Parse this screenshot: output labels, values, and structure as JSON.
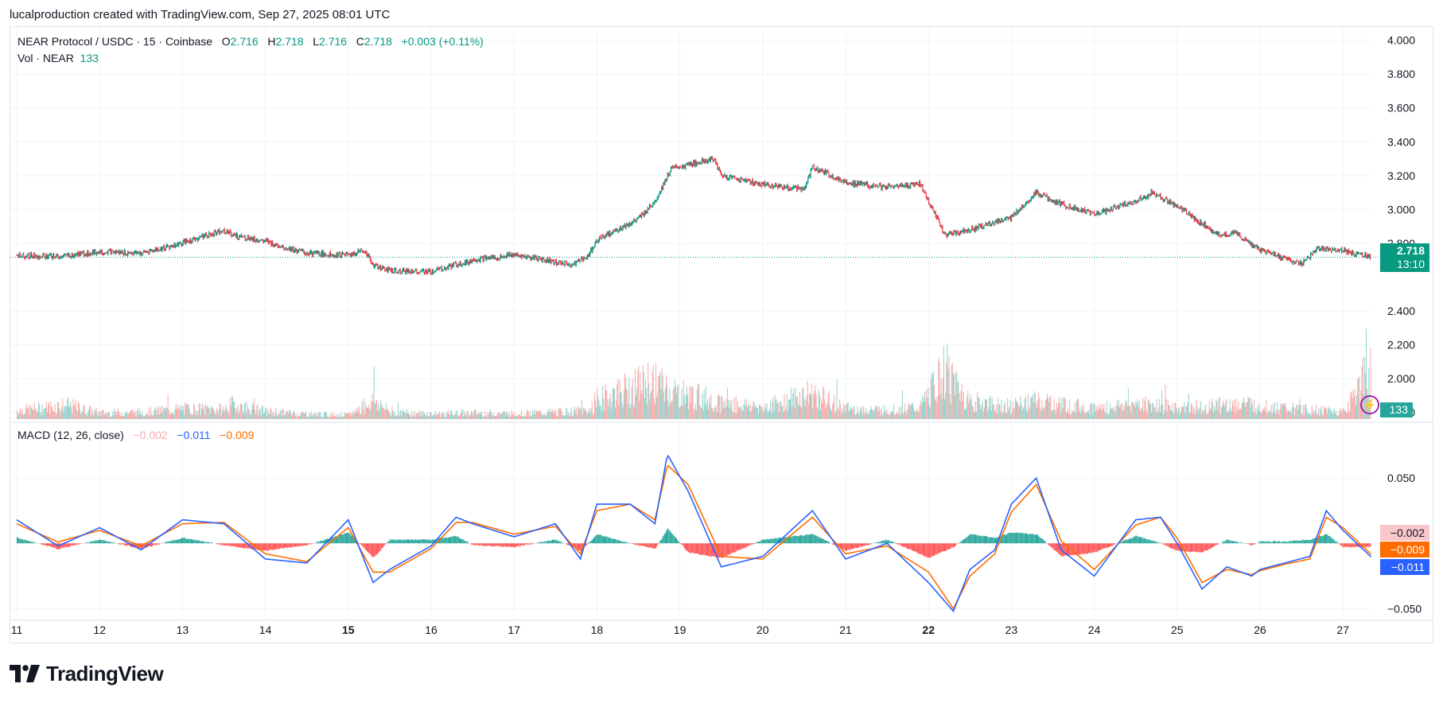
{
  "header": {
    "attribution": "lucalproduction created with TradingView.com, Sep 27, 2025 08:01 UTC"
  },
  "legend": {
    "symbol": "NEAR Protocol / USDC · 15 · Coinbase",
    "o_label": "O",
    "o": "2.716",
    "h_label": "H",
    "h": "2.718",
    "l_label": "L",
    "l": "2.716",
    "c_label": "C",
    "c": "2.718",
    "change": "+0.003 (+0.11%)",
    "vol_label": "Vol · NEAR",
    "vol": "133",
    "macd_label": "MACD (12, 26, close)",
    "macd_hist": "−0.002",
    "macd_line": "−0.011",
    "macd_signal": "−0.009"
  },
  "price_tag": {
    "value": "2.718",
    "countdown": "13:10"
  },
  "volume_tag": "133",
  "macd_tags": {
    "hist": "−0.002",
    "signal": "−0.009",
    "macd": "−0.011"
  },
  "brand": {
    "name": "TradingView"
  },
  "colors": {
    "up": "#089981",
    "down": "#f23645",
    "macd": "#2962ff",
    "signal": "#ff6d00",
    "grid": "#f0f3fa"
  },
  "chart_data": [
    {
      "type": "line",
      "title": "NEAR Protocol / USDC · 15 · Coinbase",
      "x_tick_labels": [
        "11",
        "12",
        "13",
        "14",
        "15",
        "16",
        "17",
        "18",
        "19",
        "20",
        "21",
        "22",
        "23",
        "24",
        "25",
        "26",
        "27"
      ],
      "y_tick_labels": [
        "4.000",
        "3.800",
        "3.600",
        "3.400",
        "3.200",
        "3.000",
        "2.800",
        "2.400",
        "2.200",
        "2.000",
        "1.800"
      ],
      "ylim": [
        1.7,
        4.05
      ],
      "last_price": 2.718,
      "series": [
        {
          "name": "",
          "x": [
            11,
            11.5,
            12,
            12.5,
            13,
            13.5,
            13.6,
            14,
            14.5,
            15,
            15.2,
            15.3,
            15.5,
            16,
            16.5,
            17,
            17.5,
            17.7,
            17.9,
            18,
            18.5,
            18.7,
            18.9,
            19,
            19.4,
            19.5,
            20,
            20.5,
            20.6,
            21,
            21.5,
            21.9,
            22,
            22.2,
            22.5,
            23,
            23.3,
            23.5,
            24,
            24.5,
            24.7,
            25,
            25.5,
            25.7,
            26,
            26.5,
            26.7,
            27,
            27.3
          ],
          "values": [
            2.73,
            2.72,
            2.75,
            2.74,
            2.8,
            2.88,
            2.85,
            2.81,
            2.74,
            2.73,
            2.76,
            2.67,
            2.64,
            2.63,
            2.7,
            2.73,
            2.69,
            2.67,
            2.73,
            2.82,
            2.94,
            3.05,
            3.24,
            3.25,
            3.3,
            3.2,
            3.15,
            3.12,
            3.25,
            3.16,
            3.13,
            3.15,
            3.05,
            2.85,
            2.88,
            2.95,
            3.1,
            3.05,
            2.97,
            3.05,
            3.1,
            3.02,
            2.85,
            2.86,
            2.76,
            2.68,
            2.77,
            2.76,
            2.72
          ]
        }
      ],
      "volume": {
        "name": "Vol · NEAR",
        "x": [
          11,
          11.6,
          12,
          12.5,
          13,
          13.5,
          13.6,
          14,
          14.5,
          15,
          15.3,
          15.5,
          16,
          16.5,
          17,
          17.5,
          17.9,
          18.1,
          18.7,
          18.8,
          18.9,
          19,
          19.4,
          19.5,
          20,
          20.6,
          21,
          21.5,
          21.9,
          22.2,
          22.5,
          23,
          23.3,
          24,
          24.6,
          25,
          25.4,
          25.8,
          26,
          26.5,
          27,
          27.3
        ],
        "values": [
          25,
          40,
          18,
          20,
          30,
          28,
          42,
          22,
          15,
          12,
          55,
          20,
          15,
          18,
          16,
          20,
          25,
          65,
          110,
          90,
          80,
          70,
          58,
          45,
          35,
          72,
          30,
          25,
          35,
          140,
          50,
          35,
          52,
          30,
          45,
          32,
          38,
          45,
          35,
          28,
          22,
          133
        ]
      }
    },
    {
      "type": "line",
      "title": "MACD (12, 26, close)",
      "y_tick_labels": [
        "0.050",
        "−0.050"
      ],
      "ylim": [
        -0.065,
        0.075
      ],
      "series": [
        {
          "name": "MACD",
          "x": [
            11,
            11.5,
            12,
            12.5,
            13,
            13.5,
            14,
            14.5,
            15,
            15.3,
            15.5,
            16,
            16.3,
            16.5,
            17,
            17.5,
            17.8,
            18,
            18.4,
            18.7,
            18.85,
            19.1,
            19.5,
            20,
            20.6,
            21,
            21.5,
            22,
            22.3,
            22.5,
            22.8,
            23,
            23.3,
            23.6,
            24,
            24.5,
            24.8,
            25,
            25.3,
            25.6,
            25.9,
            26,
            26.3,
            26.6,
            26.8,
            27,
            27.35
          ],
          "values": [
            0.018,
            -0.002,
            0.012,
            -0.005,
            0.018,
            0.015,
            -0.012,
            -0.015,
            0.018,
            -0.03,
            -0.02,
            -0.002,
            0.02,
            0.015,
            0.005,
            0.015,
            -0.012,
            0.03,
            0.03,
            0.015,
            0.068,
            0.04,
            -0.018,
            -0.01,
            0.025,
            -0.012,
            0.0,
            -0.03,
            -0.052,
            -0.02,
            -0.005,
            0.03,
            0.05,
            -0.005,
            -0.025,
            0.018,
            0.02,
            0.0,
            -0.035,
            -0.018,
            -0.025,
            -0.02,
            -0.015,
            -0.01,
            0.025,
            0.01,
            -0.011
          ]
        },
        {
          "name": "Signal",
          "x": [
            11,
            11.5,
            12,
            12.5,
            13,
            13.5,
            14,
            14.5,
            15,
            15.3,
            15.5,
            16,
            16.3,
            16.5,
            17,
            17.5,
            17.8,
            18,
            18.4,
            18.7,
            18.85,
            19.1,
            19.5,
            20,
            20.6,
            21,
            21.5,
            22,
            22.3,
            22.5,
            22.8,
            23,
            23.3,
            23.6,
            24,
            24.5,
            24.8,
            25,
            25.3,
            25.6,
            25.9,
            26,
            26.3,
            26.6,
            26.8,
            27,
            27.35
          ],
          "values": [
            0.015,
            0.001,
            0.01,
            -0.002,
            0.015,
            0.016,
            -0.008,
            -0.014,
            0.012,
            -0.022,
            -0.022,
            -0.004,
            0.016,
            0.016,
            0.007,
            0.013,
            -0.008,
            0.025,
            0.03,
            0.018,
            0.06,
            0.045,
            -0.01,
            -0.012,
            0.02,
            -0.008,
            -0.002,
            -0.022,
            -0.05,
            -0.025,
            -0.008,
            0.024,
            0.045,
            0.002,
            -0.02,
            0.014,
            0.02,
            0.004,
            -0.03,
            -0.02,
            -0.024,
            -0.021,
            -0.016,
            -0.012,
            0.02,
            0.012,
            -0.009
          ]
        },
        {
          "name": "Histogram",
          "x": [
            11,
            12,
            13,
            14,
            15,
            15.3,
            16,
            17,
            18,
            18.7,
            18.85,
            19.1,
            20,
            21,
            22,
            22.3,
            22.5,
            23,
            23.3,
            24,
            25,
            26,
            27,
            27.35
          ],
          "values": [
            0.003,
            0.002,
            0.003,
            -0.004,
            0.006,
            -0.008,
            0.002,
            0.004,
            0.005,
            -0.003,
            0.008,
            -0.005,
            0.002,
            -0.004,
            -0.008,
            -0.002,
            0.005,
            0.006,
            0.005,
            -0.005,
            -0.004,
            0.001,
            0.002,
            -0.002
          ]
        }
      ]
    }
  ]
}
